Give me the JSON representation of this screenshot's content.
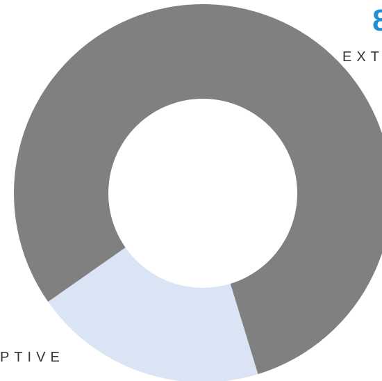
{
  "chart_data": {
    "type": "donut",
    "values": [
      20,
      80
    ],
    "colors": [
      "#dbe4f4",
      "#808080"
    ],
    "annotations": [
      "8",
      "EXT",
      "PTIVE"
    ]
  }
}
